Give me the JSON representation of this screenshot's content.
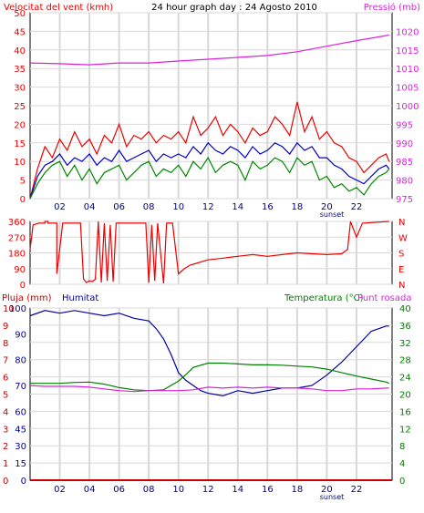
{
  "title": "24 hour graph day : 24 Agosto 2010",
  "colors": {
    "wind_avg": "#0000cc",
    "wind_gust": "#ee0000",
    "wind_low": "#008800",
    "pressure": "#dd22dd",
    "direction": "#ee0000",
    "humidity": "#0000aa",
    "temperature": "#008000",
    "dew_point": "#dd22dd",
    "rain": "#cc0000",
    "grid": "#d8d8d8",
    "frame": "#000000"
  },
  "chart_data": [
    {
      "type": "line",
      "title": "24 hour graph day : 24 Agosto 2010",
      "ylabel_left": "Velocitat del vent (kmh)",
      "ylabel_right": "Pressió (mb)",
      "x_tick_labels": [
        "02",
        "04",
        "06",
        "08",
        "10",
        "12",
        "14",
        "16",
        "18",
        "20",
        "22"
      ],
      "sunset_label": "sunset",
      "x_range": [
        0,
        24.4
      ],
      "y_left_ticks": [
        0,
        5,
        10,
        15,
        20,
        25,
        30,
        35,
        40,
        45,
        50
      ],
      "y_left_range": [
        0,
        50
      ],
      "y_right_ticks": [
        975,
        980,
        985,
        990,
        995,
        1000,
        1005,
        1010,
        1015,
        1020
      ],
      "y_right_range": [
        975,
        1025
      ],
      "grid": true,
      "series": [
        {
          "name": "Pressió (mb)",
          "axis": "right",
          "x": [
            0,
            2,
            4,
            6,
            8,
            10,
            12,
            14,
            16,
            18,
            20,
            22,
            24.2
          ],
          "values": [
            1011.5,
            1011.3,
            1011.0,
            1011.5,
            1011.5,
            1012,
            1012.5,
            1013,
            1013.5,
            1014.5,
            1016,
            1017.5,
            1019
          ]
        },
        {
          "name": "wind gust",
          "axis": "left",
          "x": [
            0,
            0.5,
            1,
            1.5,
            2,
            2.5,
            3,
            3.5,
            4,
            4.5,
            5,
            5.5,
            6,
            6.5,
            7,
            7.5,
            8,
            8.5,
            9,
            9.5,
            10,
            10.5,
            11,
            11.5,
            12,
            12.5,
            13,
            13.5,
            14,
            14.5,
            15,
            15.5,
            16,
            16.5,
            17,
            17.5,
            18,
            18.5,
            19,
            19.5,
            20,
            20.5,
            21,
            21.5,
            22,
            22.5,
            23,
            23.5,
            24,
            24.2
          ],
          "values": [
            0,
            8,
            14,
            11,
            16,
            13,
            18,
            14,
            16,
            12,
            17,
            15,
            20,
            14,
            17,
            16,
            18,
            15,
            17,
            16,
            18,
            15,
            22,
            17,
            19,
            22,
            17,
            20,
            18,
            15,
            19,
            17,
            18,
            22,
            20,
            17,
            26,
            18,
            22,
            16,
            18,
            15,
            14,
            11,
            10,
            7,
            9,
            11,
            12,
            10
          ]
        },
        {
          "name": "wind avg",
          "axis": "left",
          "x": [
            0,
            0.5,
            1,
            1.5,
            2,
            2.5,
            3,
            3.5,
            4,
            4.5,
            5,
            5.5,
            6,
            6.5,
            7,
            7.5,
            8,
            8.5,
            9,
            9.5,
            10,
            10.5,
            11,
            11.5,
            12,
            12.5,
            13,
            13.5,
            14,
            14.5,
            15,
            15.5,
            16,
            16.5,
            17,
            17.5,
            18,
            18.5,
            19,
            19.5,
            20,
            20.5,
            21,
            21.5,
            22,
            22.5,
            23,
            23.5,
            24,
            24.2
          ],
          "values": [
            0,
            6,
            9,
            10,
            12,
            9,
            11,
            10,
            12,
            9,
            11,
            10,
            13,
            10,
            11,
            12,
            13,
            10,
            12,
            11,
            12,
            11,
            14,
            12,
            15,
            13,
            12,
            14,
            13,
            11,
            14,
            12,
            13,
            15,
            14,
            12,
            15,
            13,
            14,
            11,
            11,
            9,
            8,
            6,
            5,
            4,
            6,
            8,
            9,
            8
          ]
        },
        {
          "name": "wind low",
          "axis": "left",
          "x": [
            0,
            0.5,
            1,
            1.5,
            2,
            2.5,
            3,
            3.5,
            4,
            4.5,
            5,
            5.5,
            6,
            6.5,
            7,
            7.5,
            8,
            8.5,
            9,
            9.5,
            10,
            10.5,
            11,
            11.5,
            12,
            12.5,
            13,
            13.5,
            14,
            14.5,
            15,
            15.5,
            16,
            16.5,
            17,
            17.5,
            18,
            18.5,
            19,
            19.5,
            20,
            20.5,
            21,
            21.5,
            22,
            22.5,
            23,
            23.5,
            24,
            24.2
          ],
          "values": [
            0,
            4,
            7,
            9,
            10,
            6,
            9,
            5,
            8,
            4,
            7,
            8,
            9,
            5,
            7,
            9,
            10,
            6,
            8,
            7,
            9,
            6,
            10,
            8,
            11,
            7,
            9,
            10,
            9,
            5,
            10,
            8,
            9,
            11,
            10,
            7,
            11,
            9,
            10,
            5,
            6,
            3,
            4,
            2,
            3,
            1,
            4,
            6,
            7,
            8
          ]
        }
      ]
    },
    {
      "type": "line",
      "ylabel_left": "",
      "y_left_ticks": [
        0,
        90,
        180,
        270,
        360
      ],
      "y_left_range": [
        0,
        360
      ],
      "direction_labels": [
        "N",
        "W",
        "S",
        "E",
        "N"
      ],
      "x_tick_labels": [],
      "x_range": [
        0,
        24.4
      ],
      "grid": true,
      "series": [
        {
          "name": "wind direction",
          "x": [
            0,
            0.2,
            0.6,
            1.0,
            1.0,
            1.2,
            1.2,
            1.8,
            1.8,
            2.2,
            2.6,
            3.0,
            3.4,
            3.6,
            3.8,
            4.0,
            4.2,
            4.4,
            4.6,
            4.8,
            5.0,
            5.2,
            5.4,
            5.6,
            5.8,
            6.0,
            6.2,
            6.6,
            7.0,
            7.4,
            7.8,
            8.0,
            8.2,
            8.4,
            8.6,
            9.0,
            9.2,
            9.6,
            10.0,
            10.4,
            10.8,
            11.2,
            11.6,
            12.0,
            13.0,
            14.0,
            15.0,
            16.0,
            17.0,
            18.0,
            19.0,
            20.0,
            21.0,
            21.4,
            21.6,
            22.0,
            22.4,
            24.2
          ],
          "values": [
            200,
            340,
            350,
            350,
            360,
            360,
            350,
            350,
            60,
            350,
            350,
            350,
            350,
            30,
            10,
            20,
            15,
            30,
            360,
            10,
            350,
            20,
            340,
            15,
            350,
            350,
            350,
            350,
            350,
            350,
            350,
            10,
            340,
            20,
            350,
            5,
            350,
            350,
            60,
            90,
            110,
            120,
            130,
            140,
            150,
            160,
            170,
            160,
            170,
            180,
            175,
            170,
            175,
            200,
            360,
            270,
            350,
            360
          ]
        }
      ]
    },
    {
      "type": "line",
      "ylabel_left": "Pluja (mm)",
      "ylabel_left2": "Humitat",
      "ylabel_right": "Temperatura (°C)",
      "ylabel_right2": "Punt rosada",
      "x_tick_labels": [
        "02",
        "04",
        "06",
        "08",
        "10",
        "12",
        "14",
        "16",
        "18",
        "20",
        "22"
      ],
      "sunset_label": "sunset",
      "x_range": [
        0,
        24.4
      ],
      "y_rain_ticks": [
        0,
        1,
        2,
        3,
        4,
        5,
        6,
        7,
        8,
        9,
        10
      ],
      "y_rain_range": [
        0,
        10
      ],
      "y_humidity_ticks": [
        0,
        15,
        30,
        45,
        60,
        70,
        80,
        90,
        100
      ],
      "y_humidity_positions": [
        0,
        15,
        30,
        45,
        60,
        70,
        80,
        90,
        100
      ],
      "y_temp_ticks": [
        0,
        4,
        8,
        12,
        16,
        20,
        24,
        28,
        32,
        36,
        40
      ],
      "y_temp_range": [
        0,
        40
      ],
      "grid": true,
      "series": [
        {
          "name": "Humitat",
          "axis": "humidity",
          "x": [
            0,
            1,
            2,
            3,
            4,
            5,
            6,
            7,
            8,
            8.5,
            9,
            9.5,
            10,
            10.5,
            11,
            11.5,
            12,
            13,
            14,
            15,
            16,
            17,
            18,
            19,
            20,
            21,
            22,
            23,
            24,
            24.2
          ],
          "values": [
            97,
            99,
            98,
            99,
            98,
            97,
            98,
            96,
            95,
            92,
            88,
            82,
            75,
            72,
            70,
            68,
            67,
            66,
            68,
            67,
            68,
            69,
            69,
            70,
            74,
            79,
            85,
            91,
            93,
            93
          ]
        },
        {
          "name": "Temperatura (°C)",
          "axis": "temp",
          "x": [
            0,
            1,
            2,
            3,
            4,
            5,
            6,
            7,
            8,
            9,
            10,
            10.5,
            11,
            12,
            13,
            14,
            15,
            16,
            17,
            18,
            19,
            20,
            21,
            22,
            23,
            24,
            24.2
          ],
          "values": [
            22.5,
            22.5,
            22.5,
            22.7,
            22.8,
            22.3,
            21.5,
            21.0,
            20.8,
            21.0,
            23.0,
            24.5,
            26.2,
            27.2,
            27.2,
            27.0,
            26.8,
            26.8,
            26.7,
            26.5,
            26.3,
            25.8,
            25.0,
            24.2,
            23.5,
            22.8,
            22.5
          ]
        },
        {
          "name": "Punt rosada",
          "axis": "temp",
          "x": [
            0,
            1,
            2,
            3,
            4,
            5,
            6,
            7,
            8,
            9,
            10,
            11,
            12,
            13,
            14,
            15,
            16,
            17,
            18,
            19,
            20,
            21,
            22,
            23,
            24,
            24.2
          ],
          "values": [
            22.0,
            21.8,
            21.8,
            21.8,
            21.6,
            21.2,
            20.8,
            20.6,
            20.8,
            20.8,
            20.8,
            21.0,
            21.6,
            21.4,
            21.6,
            21.4,
            21.6,
            21.4,
            21.4,
            21.2,
            20.8,
            20.8,
            21.2,
            21.2,
            21.4,
            21.4
          ]
        },
        {
          "name": "Pluja (mm)",
          "axis": "rain",
          "x": [
            0,
            24.4
          ],
          "values": [
            0,
            0
          ]
        }
      ]
    }
  ]
}
